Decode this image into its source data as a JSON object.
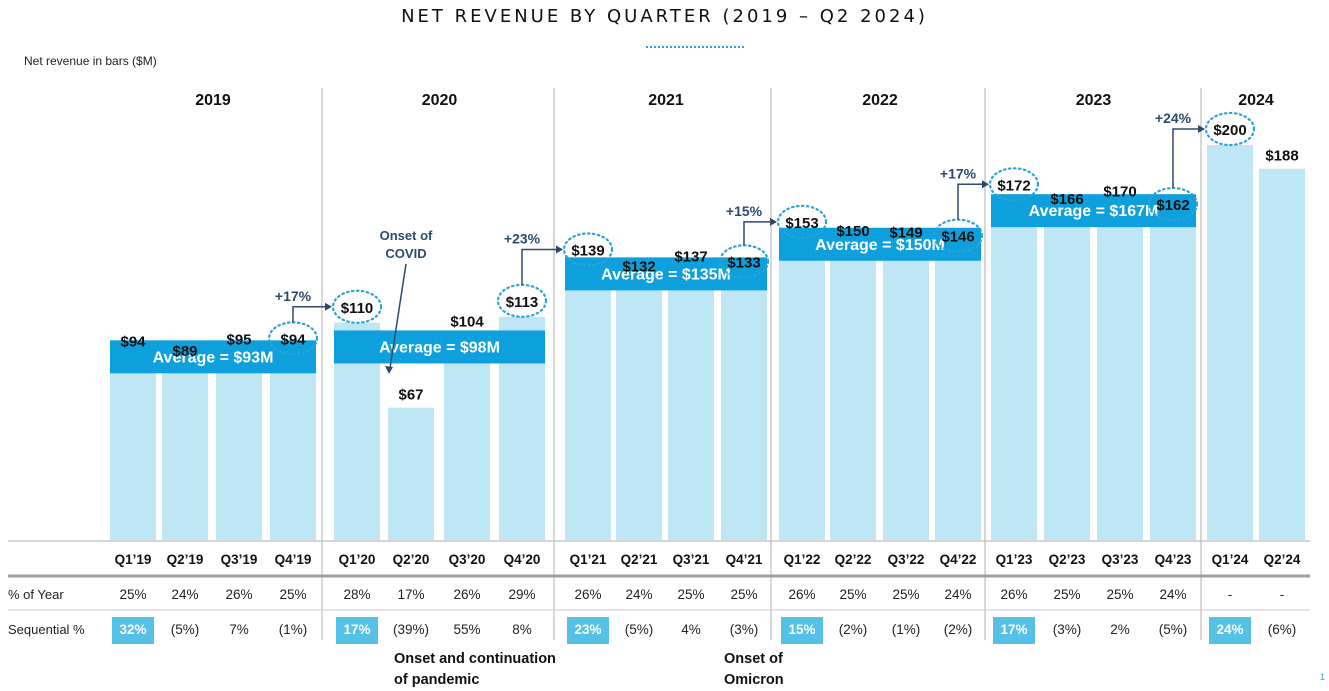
{
  "chart_data": {
    "type": "bar",
    "title": "NET REVENUE BY QUARTER (2019 – Q2 2024)",
    "ylabel": "Net revenue in bars ($M)",
    "xlabel": "",
    "ylim": [
      0,
      200
    ],
    "grid": false,
    "years": [
      {
        "label": "2019",
        "average_label": "Average = $93M",
        "average": 93
      },
      {
        "label": "2020",
        "average_label": "Average = $98M",
        "average": 98
      },
      {
        "label": "2021",
        "average_label": "Average = $135M",
        "average": 135
      },
      {
        "label": "2022",
        "average_label": "Average = $150M",
        "average": 150
      },
      {
        "label": "2023",
        "average_label": "Average = $167M",
        "average": 167
      },
      {
        "label": "2024",
        "average_label": null,
        "average": null
      }
    ],
    "categories": [
      "Q1’19",
      "Q2’19",
      "Q3’19",
      "Q4’19",
      "Q1’20",
      "Q2’20",
      "Q3’20",
      "Q4’20",
      "Q1’21",
      "Q2’21",
      "Q3’21",
      "Q4’21",
      "Q1’22",
      "Q2’22",
      "Q3’22",
      "Q4’22",
      "Q1’23",
      "Q2’23",
      "Q3’23",
      "Q4’23",
      "Q1’24",
      "Q2’24"
    ],
    "values": [
      94,
      89,
      95,
      94,
      110,
      67,
      104,
      113,
      139,
      132,
      137,
      133,
      153,
      150,
      149,
      146,
      172,
      166,
      170,
      162,
      200,
      188
    ],
    "value_labels": [
      "$94",
      "$89",
      "$95",
      "$94",
      "$110",
      "$67",
      "$104",
      "$113",
      "$139",
      "$132",
      "$137",
      "$133",
      "$153",
      "$150",
      "$149",
      "$146",
      "$172",
      "$166",
      "$170",
      "$162",
      "$200",
      "$188"
    ],
    "circled": [
      3,
      4,
      7,
      8,
      11,
      12,
      15,
      16,
      19,
      20
    ],
    "growth_annotations": [
      {
        "from": 3,
        "to": 4,
        "label": "+17%"
      },
      {
        "from": 7,
        "to": 8,
        "label": "+23%"
      },
      {
        "from": 11,
        "to": 12,
        "label": "+15%"
      },
      {
        "from": 15,
        "to": 16,
        "label": "+17%"
      },
      {
        "from": 19,
        "to": 20,
        "label": "+24%"
      }
    ],
    "callouts": [
      {
        "target": 5,
        "label_lines": [
          "Onset of",
          "COVID"
        ]
      }
    ],
    "table": {
      "rows": [
        {
          "label": "% of Year",
          "values": [
            "25%",
            "24%",
            "26%",
            "25%",
            "28%",
            "17%",
            "26%",
            "29%",
            "26%",
            "24%",
            "25%",
            "25%",
            "26%",
            "25%",
            "25%",
            "24%",
            "26%",
            "25%",
            "25%",
            "24%",
            "-",
            "-"
          ]
        },
        {
          "label": "Sequential %",
          "values": [
            "32%",
            "(5%)",
            "7%",
            "(1%)",
            "17%",
            "(39%)",
            "55%",
            "8%",
            "23%",
            "(5%)",
            "4%",
            "(3%)",
            "15%",
            "(2%)",
            "(1%)",
            "(2%)",
            "17%",
            "(3%)",
            "2%",
            "(5%)",
            "24%",
            "(6%)"
          ],
          "highlighted": [
            0,
            4,
            8,
            12,
            16,
            20
          ]
        }
      ]
    },
    "footnotes": [
      {
        "lines": [
          "Onset and continuation",
          "of pandemic"
        ],
        "under": 5
      },
      {
        "lines": [
          "Onset of",
          "Omicron"
        ],
        "under": 11
      }
    ],
    "colors": {
      "bar": "#bfe6f5",
      "average_band": "#0ea0dc",
      "highlight": "#55c1e6",
      "dots": "#2ba3d6",
      "annotation": "#2d4a6e",
      "divider": "#bdbdbd"
    }
  },
  "page": {
    "title": "NET REVENUE BY QUARTER (2019 – Q2 2024)",
    "subtitle": "Net revenue in bars ($M)",
    "page_number": "1"
  }
}
